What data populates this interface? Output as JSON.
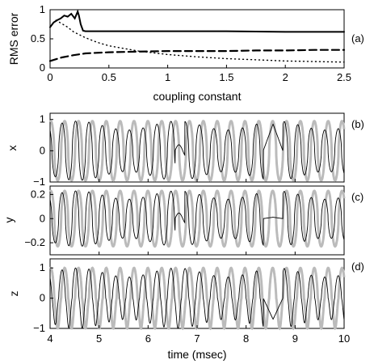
{
  "chart_data": [
    {
      "panel": "(a)",
      "type": "line",
      "xlabel": "coupling constant",
      "ylabel": "RMS error",
      "xlim": [
        0,
        2.5
      ],
      "ylim": [
        0,
        1
      ],
      "xticks": [
        "0",
        "0.5",
        "1",
        "1.5",
        "2",
        "2.5"
      ],
      "yticks": [
        "0",
        "0.5",
        "1"
      ],
      "series": [
        {
          "style": "solid",
          "x": [
            0,
            0.03,
            0.06,
            0.09,
            0.12,
            0.15,
            0.18,
            0.21,
            0.235,
            0.245,
            0.26,
            0.28,
            0.3,
            0.5,
            1.0,
            1.5,
            2.0,
            2.5
          ],
          "y": [
            0.7,
            0.78,
            0.82,
            0.85,
            0.9,
            0.88,
            0.93,
            0.85,
            0.97,
            0.9,
            0.75,
            0.64,
            0.63,
            0.63,
            0.63,
            0.63,
            0.62,
            0.62
          ]
        },
        {
          "style": "dashed",
          "x": [
            0,
            0.05,
            0.1,
            0.2,
            0.3,
            0.5,
            0.75,
            1.0,
            1.25,
            1.5,
            1.75,
            2.0,
            2.25,
            2.5
          ],
          "y": [
            0.12,
            0.15,
            0.18,
            0.22,
            0.25,
            0.27,
            0.28,
            0.29,
            0.29,
            0.29,
            0.3,
            0.3,
            0.31,
            0.31
          ]
        },
        {
          "style": "dotted",
          "x": [
            0.05,
            0.1,
            0.15,
            0.2,
            0.3,
            0.4,
            0.5,
            0.75,
            1.0,
            1.25,
            1.5,
            1.75,
            2.0,
            2.25,
            2.5
          ],
          "y": [
            0.82,
            0.76,
            0.7,
            0.62,
            0.52,
            0.44,
            0.38,
            0.29,
            0.23,
            0.19,
            0.16,
            0.14,
            0.12,
            0.11,
            0.1
          ]
        }
      ]
    },
    {
      "panel": "(b)",
      "type": "line",
      "xlabel": "",
      "ylabel": "x",
      "xlim": [
        4,
        10
      ],
      "ylim": [
        -1,
        1.2
      ],
      "yticks": [
        "1",
        "0",
        "−1"
      ],
      "series": [
        {
          "color": "#bbbbbb",
          "description_period_ms": 0.283,
          "amplitude": 0.95
        },
        {
          "color": "#000000",
          "description_period_ms": 0.283,
          "amplitude": 0.95
        }
      ]
    },
    {
      "panel": "(c)",
      "type": "line",
      "xlabel": "",
      "ylabel": "y",
      "xlim": [
        4,
        10
      ],
      "ylim": [
        -0.3,
        0.27
      ],
      "yticks": [
        "0.2",
        "0",
        "−0.2"
      ],
      "series": [
        {
          "color": "#bbbbbb",
          "amplitude": 0.23
        },
        {
          "color": "#000000",
          "amplitude": 0.23
        }
      ]
    },
    {
      "panel": "(d)",
      "type": "line",
      "xlabel": "time (msec)",
      "ylabel": "z",
      "xlim": [
        4,
        10
      ],
      "ylim": [
        -1,
        1.3
      ],
      "xticks": [
        "4",
        "5",
        "6",
        "7",
        "8",
        "9",
        "10"
      ],
      "yticks": [
        "1",
        "0",
        "−1"
      ],
      "series": [
        {
          "color": "#bbbbbb",
          "amplitude": 1.0
        },
        {
          "color": "#000000",
          "amplitude": 1.0
        }
      ]
    }
  ]
}
